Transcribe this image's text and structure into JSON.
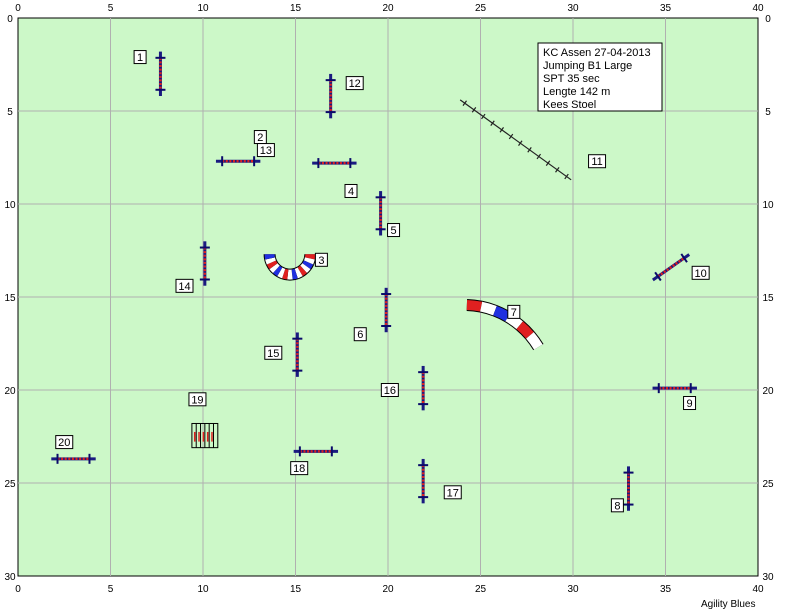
{
  "axes": {
    "x_ticks": [
      0,
      5,
      10,
      15,
      20,
      25,
      30,
      35,
      40
    ],
    "y_ticks": [
      0,
      5,
      10,
      15,
      20,
      25,
      30
    ],
    "x_range": [
      0,
      40
    ],
    "y_range": [
      0,
      30
    ],
    "grid": true
  },
  "colors": {
    "field": "#ccf8c8",
    "grid": "#b0b0b0",
    "bar": "#dd2020",
    "pole": "#1a1a80",
    "wing": "#0a0a6a",
    "tunnel_red": "#e02020",
    "tunnel_blue": "#2030e0",
    "tunnel_white": "#ffffff"
  },
  "info_box": {
    "lines": [
      "KC Assen 27-04-2013",
      "Jumping B1 Large",
      "SPT 35 sec",
      "Lengte 142 m",
      "Kees Stoel"
    ]
  },
  "credit": "Agility Blues",
  "obstacles": [
    {
      "num": "1",
      "type": "jump",
      "x": 7.7,
      "y": 3.0,
      "angle": 90,
      "length": 2.4,
      "label_x": 6.6,
      "label_y": 2.1
    },
    {
      "num": "2",
      "type": "jump",
      "x": 11.9,
      "y": 7.7,
      "angle": 0,
      "length": 2.4,
      "label_x": 13.1,
      "label_y": 6.4
    },
    {
      "num": "3",
      "type": "tunnel",
      "x": 14.7,
      "y": 12.7,
      "radius": 1.1,
      "start": 0,
      "sweep": 180,
      "label_x": 16.4,
      "label_y": 13.0
    },
    {
      "num": "4",
      "type": "jump",
      "x": 17.1,
      "y": 7.8,
      "angle": 0,
      "length": 2.4,
      "label_x": 18.0,
      "label_y": 9.3
    },
    {
      "num": "5",
      "type": "jump",
      "x": 19.6,
      "y": 10.5,
      "angle": 90,
      "length": 2.4,
      "label_x": 20.3,
      "label_y": 11.4
    },
    {
      "num": "6",
      "type": "jump",
      "x": 19.9,
      "y": 15.7,
      "angle": 90,
      "length": 2.4,
      "label_x": 18.5,
      "label_y": 17.0
    },
    {
      "num": "7",
      "type": "tunnel",
      "x": 24.1,
      "y": 20.1,
      "radius": 4.7,
      "start": -88,
      "sweep": 57,
      "label_x": 26.8,
      "label_y": 15.8
    },
    {
      "num": "8",
      "type": "jump",
      "x": 33.0,
      "y": 25.3,
      "angle": 90,
      "length": 2.4,
      "label_x": 32.4,
      "label_y": 26.2
    },
    {
      "num": "9",
      "type": "jump",
      "x": 35.5,
      "y": 19.9,
      "angle": 0,
      "length": 2.4,
      "label_x": 36.3,
      "label_y": 20.7
    },
    {
      "num": "10",
      "type": "jump",
      "x": 35.3,
      "y": 13.4,
      "angle": -35,
      "length": 2.4,
      "label_x": 36.9,
      "label_y": 13.7
    },
    {
      "num": "11",
      "type": "weave",
      "x1": 23.9,
      "y1": 4.4,
      "x2": 29.9,
      "y2": 8.7,
      "poles": 12,
      "label_x": 31.3,
      "label_y": 7.7
    },
    {
      "num": "12",
      "type": "jump",
      "x": 16.9,
      "y": 4.2,
      "angle": 90,
      "length": 2.4,
      "label_x": 18.2,
      "label_y": 3.5
    },
    {
      "num": "13",
      "type": "label",
      "label_x": 13.4,
      "label_y": 7.1
    },
    {
      "num": "14",
      "type": "jump",
      "x": 10.1,
      "y": 13.2,
      "angle": 90,
      "length": 2.4,
      "label_x": 9.0,
      "label_y": 14.4
    },
    {
      "num": "15",
      "type": "jump",
      "x": 15.1,
      "y": 18.1,
      "angle": 90,
      "length": 2.4,
      "label_x": 13.8,
      "label_y": 18.0
    },
    {
      "num": "16",
      "type": "jump",
      "x": 21.9,
      "y": 19.9,
      "angle": 90,
      "length": 2.4,
      "label_x": 20.1,
      "label_y": 20.0
    },
    {
      "num": "17",
      "type": "jump",
      "x": 21.9,
      "y": 24.9,
      "angle": 90,
      "length": 2.4,
      "label_x": 23.5,
      "label_y": 25.5
    },
    {
      "num": "18",
      "type": "jump",
      "x": 16.1,
      "y": 23.3,
      "angle": 0,
      "length": 2.4,
      "label_x": 15.2,
      "label_y": 24.2
    },
    {
      "num": "19",
      "type": "panel",
      "x": 9.4,
      "y": 21.8,
      "width": 1.4,
      "height": 1.3,
      "label_x": 9.7,
      "label_y": 20.5
    },
    {
      "num": "20",
      "type": "jump",
      "x": 3.0,
      "y": 23.7,
      "angle": 0,
      "length": 2.4,
      "label_x": 2.5,
      "label_y": 22.8
    }
  ]
}
